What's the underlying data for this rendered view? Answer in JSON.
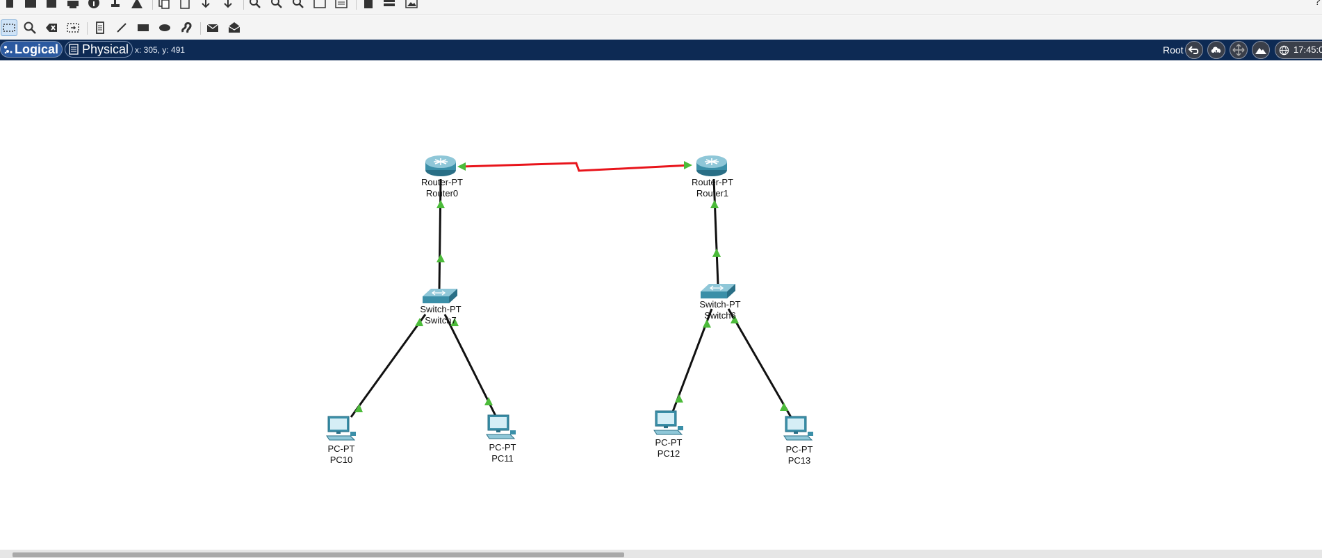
{
  "toolbar_main": {
    "icons": [
      "new-icon",
      "open-icon",
      "save-icon",
      "print-icon",
      "info-icon",
      "activity-wizard-icon",
      "network-info-icon",
      "copy-icon",
      "paste-icon",
      "undo-icon",
      "redo-icon",
      "zoom-in-icon",
      "zoom-reset-icon",
      "zoom-out-icon",
      "drawing-palette-icon",
      "custom-devices-icon",
      "view-command-log-icon",
      "cluster-icon",
      "background-image-icon"
    ],
    "help_glyph": "?"
  },
  "toolbar_tools": {
    "icons": [
      "select-icon",
      "inspect-icon",
      "delete-icon",
      "resize-shape-icon",
      "place-note-icon",
      "draw-line-icon",
      "draw-rectangle-icon",
      "draw-ellipse-icon",
      "freeform-icon",
      "add-simple-pdu-icon",
      "add-complex-pdu-icon"
    ],
    "active": "select-icon"
  },
  "navbar": {
    "tab_logical": "Logical",
    "tab_physical": "Physical",
    "coords": "x: 305, y: 491",
    "root_label": "Root",
    "clock": "17:45:0"
  },
  "devices": [
    {
      "id": "router0",
      "model": "Router-PT",
      "name": "Router0",
      "type": "router"
    },
    {
      "id": "router1",
      "model": "Router-PT",
      "name": "Router1",
      "type": "router"
    },
    {
      "id": "switch7",
      "model": "Switch-PT",
      "name": "Switch7",
      "type": "switch"
    },
    {
      "id": "switch6",
      "model": "Switch-PT",
      "name": "Switch6",
      "type": "switch"
    },
    {
      "id": "pc10",
      "model": "PC-PT",
      "name": "PC10",
      "type": "pc"
    },
    {
      "id": "pc11",
      "model": "PC-PT",
      "name": "PC11",
      "type": "pc"
    },
    {
      "id": "pc12",
      "model": "PC-PT",
      "name": "PC12",
      "type": "pc"
    },
    {
      "id": "pc13",
      "model": "PC-PT",
      "name": "PC13",
      "type": "pc"
    }
  ],
  "links": [
    {
      "from": "router0",
      "to": "router1",
      "kind": "serial",
      "color": "#e8141b"
    },
    {
      "from": "router0",
      "to": "switch7",
      "kind": "ethernet",
      "color": "#111111"
    },
    {
      "from": "router1",
      "to": "switch6",
      "kind": "ethernet",
      "color": "#111111"
    },
    {
      "from": "switch7",
      "to": "pc10",
      "kind": "ethernet",
      "color": "#111111"
    },
    {
      "from": "switch7",
      "to": "pc11",
      "kind": "ethernet",
      "color": "#111111"
    },
    {
      "from": "switch6",
      "to": "pc12",
      "kind": "ethernet",
      "color": "#111111"
    },
    {
      "from": "switch6",
      "to": "pc13",
      "kind": "ethernet",
      "color": "#111111"
    }
  ],
  "colors": {
    "navbar_bg": "#0d2a54",
    "link_up": "#4cbb3a",
    "serial": "#e8141b",
    "device_teal": "#3b8fa8"
  }
}
